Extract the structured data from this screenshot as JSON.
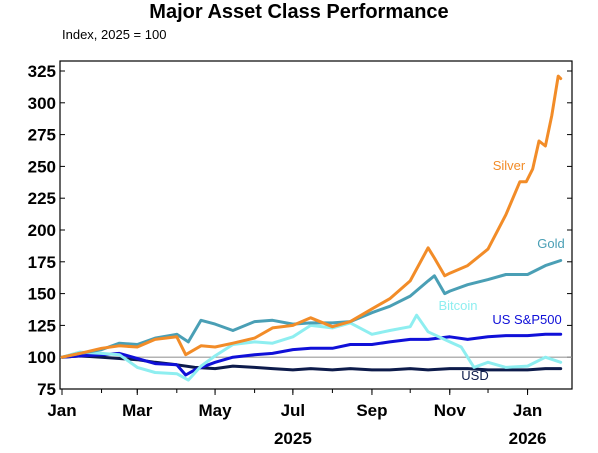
{
  "chart_data": {
    "type": "line",
    "title": "Major Asset Class Performance",
    "subtitle": "Index, 2025 = 100",
    "yticks": [
      "325",
      "300",
      "275",
      "250",
      "225",
      "200",
      "175",
      "150",
      "125",
      "100",
      "75"
    ],
    "ylim": [
      75,
      325
    ],
    "xticks": [
      {
        "label": "Jan",
        "x": "2025-01-01"
      },
      {
        "label": "Mar",
        "x": "2025-03-01"
      },
      {
        "label": "May",
        "x": "2025-05-01"
      },
      {
        "label": "Jul",
        "x": "2025-07-01"
      },
      {
        "label": "Sep",
        "x": "2025-09-01"
      },
      {
        "label": "Nov",
        "x": "2025-11-01"
      },
      {
        "label": "Jan",
        "x": "2026-01-01"
      }
    ],
    "year_labels": [
      {
        "label": "2025",
        "x": "2025-07-01"
      },
      {
        "label": "2026",
        "x": "2026-01-01"
      }
    ],
    "xlim": [
      "2025-01-01",
      "2026-01-28"
    ],
    "reference_line": 100,
    "grid": false,
    "series": [
      {
        "name": "USD",
        "color": "#0d1b4b",
        "points": [
          [
            "2025-01-01",
            100
          ],
          [
            "2025-01-15",
            101
          ],
          [
            "2025-02-01",
            100
          ],
          [
            "2025-02-15",
            99
          ],
          [
            "2025-03-01",
            98
          ],
          [
            "2025-03-15",
            96
          ],
          [
            "2025-04-01",
            94
          ],
          [
            "2025-04-15",
            92
          ],
          [
            "2025-05-01",
            91
          ],
          [
            "2025-05-15",
            93
          ],
          [
            "2025-06-01",
            92
          ],
          [
            "2025-06-15",
            91
          ],
          [
            "2025-07-01",
            90
          ],
          [
            "2025-07-15",
            91
          ],
          [
            "2025-08-01",
            90
          ],
          [
            "2025-08-15",
            91
          ],
          [
            "2025-09-01",
            90
          ],
          [
            "2025-09-15",
            90
          ],
          [
            "2025-10-01",
            91
          ],
          [
            "2025-10-15",
            90
          ],
          [
            "2025-11-01",
            91
          ],
          [
            "2025-11-15",
            91
          ],
          [
            "2025-12-01",
            90
          ],
          [
            "2025-12-15",
            90
          ],
          [
            "2026-01-01",
            90
          ],
          [
            "2026-01-15",
            91
          ],
          [
            "2026-01-27",
            91
          ]
        ]
      },
      {
        "name": "US S&P500",
        "color": "#1010d8",
        "points": [
          [
            "2025-01-01",
            100
          ],
          [
            "2025-01-15",
            101
          ],
          [
            "2025-02-01",
            102
          ],
          [
            "2025-02-15",
            103
          ],
          [
            "2025-03-01",
            99
          ],
          [
            "2025-03-15",
            95
          ],
          [
            "2025-04-01",
            94
          ],
          [
            "2025-04-08",
            86
          ],
          [
            "2025-04-15",
            90
          ],
          [
            "2025-05-01",
            96
          ],
          [
            "2025-05-15",
            100
          ],
          [
            "2025-06-01",
            102
          ],
          [
            "2025-06-15",
            103
          ],
          [
            "2025-07-01",
            106
          ],
          [
            "2025-07-15",
            107
          ],
          [
            "2025-08-01",
            107
          ],
          [
            "2025-08-15",
            110
          ],
          [
            "2025-09-01",
            110
          ],
          [
            "2025-09-15",
            112
          ],
          [
            "2025-10-01",
            114
          ],
          [
            "2025-10-15",
            114
          ],
          [
            "2025-11-01",
            116
          ],
          [
            "2025-11-15",
            114
          ],
          [
            "2025-12-01",
            116
          ],
          [
            "2025-12-15",
            117
          ],
          [
            "2026-01-01",
            117
          ],
          [
            "2026-01-15",
            118
          ],
          [
            "2026-01-27",
            118
          ]
        ]
      },
      {
        "name": "Bitcoin",
        "color": "#8eeef0",
        "points": [
          [
            "2025-01-01",
            100
          ],
          [
            "2025-01-15",
            104
          ],
          [
            "2025-02-01",
            103
          ],
          [
            "2025-02-15",
            102
          ],
          [
            "2025-03-01",
            92
          ],
          [
            "2025-03-15",
            88
          ],
          [
            "2025-04-01",
            87
          ],
          [
            "2025-04-10",
            82
          ],
          [
            "2025-04-20",
            93
          ],
          [
            "2025-05-01",
            101
          ],
          [
            "2025-05-15",
            110
          ],
          [
            "2025-06-01",
            112
          ],
          [
            "2025-06-15",
            111
          ],
          [
            "2025-07-01",
            116
          ],
          [
            "2025-07-15",
            125
          ],
          [
            "2025-08-01",
            123
          ],
          [
            "2025-08-15",
            127
          ],
          [
            "2025-09-01",
            118
          ],
          [
            "2025-09-15",
            121
          ],
          [
            "2025-10-01",
            124
          ],
          [
            "2025-10-06",
            133
          ],
          [
            "2025-10-15",
            120
          ],
          [
            "2025-11-01",
            112
          ],
          [
            "2025-11-10",
            108
          ],
          [
            "2025-11-20",
            92
          ],
          [
            "2025-12-01",
            96
          ],
          [
            "2025-12-15",
            92
          ],
          [
            "2026-01-01",
            93
          ],
          [
            "2026-01-15",
            100
          ],
          [
            "2026-01-27",
            96
          ]
        ]
      },
      {
        "name": "Gold",
        "color": "#4a9fb5",
        "points": [
          [
            "2025-01-01",
            100
          ],
          [
            "2025-01-15",
            103
          ],
          [
            "2025-02-01",
            106
          ],
          [
            "2025-02-15",
            111
          ],
          [
            "2025-03-01",
            110
          ],
          [
            "2025-03-15",
            115
          ],
          [
            "2025-04-01",
            118
          ],
          [
            "2025-04-10",
            112
          ],
          [
            "2025-04-20",
            129
          ],
          [
            "2025-05-01",
            126
          ],
          [
            "2025-05-15",
            121
          ],
          [
            "2025-06-01",
            128
          ],
          [
            "2025-06-15",
            129
          ],
          [
            "2025-07-01",
            126
          ],
          [
            "2025-07-15",
            127
          ],
          [
            "2025-08-01",
            127
          ],
          [
            "2025-08-15",
            128
          ],
          [
            "2025-09-01",
            135
          ],
          [
            "2025-09-15",
            140
          ],
          [
            "2025-10-01",
            148
          ],
          [
            "2025-10-15",
            160
          ],
          [
            "2025-10-20",
            164
          ],
          [
            "2025-10-28",
            150
          ],
          [
            "2025-11-01",
            152
          ],
          [
            "2025-11-15",
            157
          ],
          [
            "2025-12-01",
            161
          ],
          [
            "2025-12-15",
            165
          ],
          [
            "2026-01-01",
            165
          ],
          [
            "2026-01-15",
            172
          ],
          [
            "2026-01-27",
            176
          ]
        ]
      },
      {
        "name": "Silver",
        "color": "#f28c28",
        "points": [
          [
            "2025-01-01",
            100
          ],
          [
            "2025-01-15",
            103
          ],
          [
            "2025-02-01",
            107
          ],
          [
            "2025-02-15",
            109
          ],
          [
            "2025-03-01",
            108
          ],
          [
            "2025-03-15",
            114
          ],
          [
            "2025-04-01",
            116
          ],
          [
            "2025-04-08",
            102
          ],
          [
            "2025-04-20",
            109
          ],
          [
            "2025-05-01",
            108
          ],
          [
            "2025-05-15",
            111
          ],
          [
            "2025-06-01",
            115
          ],
          [
            "2025-06-15",
            123
          ],
          [
            "2025-07-01",
            125
          ],
          [
            "2025-07-15",
            131
          ],
          [
            "2025-08-01",
            124
          ],
          [
            "2025-08-15",
            128
          ],
          [
            "2025-09-01",
            138
          ],
          [
            "2025-09-15",
            146
          ],
          [
            "2025-10-01",
            160
          ],
          [
            "2025-10-15",
            186
          ],
          [
            "2025-10-20",
            178
          ],
          [
            "2025-10-28",
            164
          ],
          [
            "2025-11-01",
            166
          ],
          [
            "2025-11-15",
            172
          ],
          [
            "2025-12-01",
            185
          ],
          [
            "2025-12-15",
            212
          ],
          [
            "2025-12-26",
            238
          ],
          [
            "2025-12-31",
            238
          ],
          [
            "2026-01-05",
            248
          ],
          [
            "2026-01-10",
            270
          ],
          [
            "2026-01-15",
            266
          ],
          [
            "2026-01-20",
            290
          ],
          [
            "2026-01-25",
            321
          ],
          [
            "2026-01-27",
            319
          ]
        ]
      }
    ]
  }
}
